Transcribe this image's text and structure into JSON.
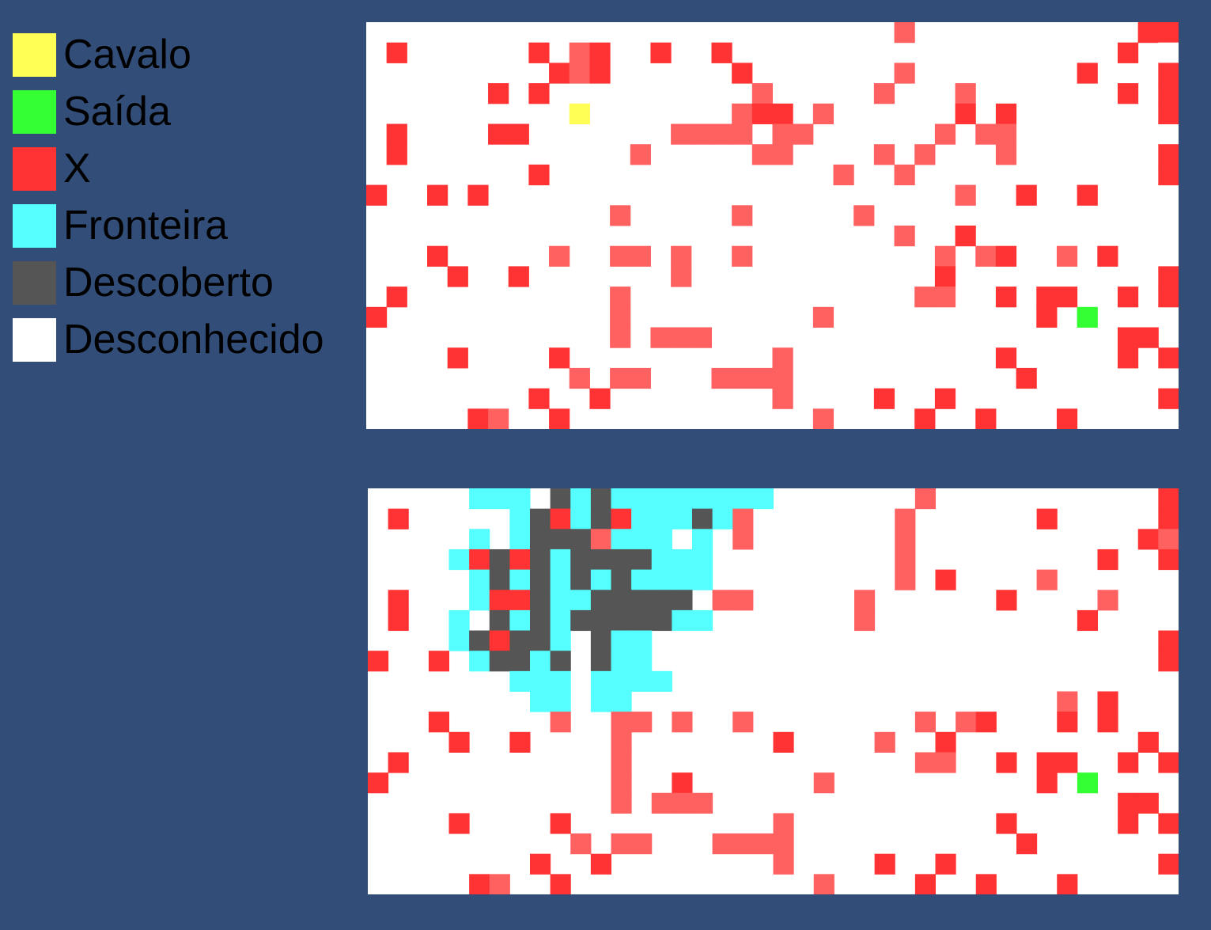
{
  "legend": {
    "items": [
      {
        "key": "knight",
        "label": "Cavalo",
        "color": "#ffff55"
      },
      {
        "key": "exit",
        "label": "Saída",
        "color": "#33ff33"
      },
      {
        "key": "blocked",
        "label": "X",
        "color": "#ff3333"
      },
      {
        "key": "frontier",
        "label": "Fronteira",
        "color": "#55ffff"
      },
      {
        "key": "explored",
        "label": "Descoberto",
        "color": "#555555"
      },
      {
        "key": "unknown",
        "label": "Desconhecido",
        "color": "#ffffff"
      }
    ]
  },
  "colors": {
    "background": "#314d78",
    "X_dark": "#ff3333",
    "X_light": "#ff6060"
  },
  "grids": {
    "cols": 40,
    "rows": 20,
    "top": {
      "rows": [
        "..........................,...........XX",
        ".X......X.,X..X..X...................X.R",
        ".........X,X......X.......,........X...X",
        "......X.X..........,.....,...,.......X.X",
        "..........C.......,XX.,......X.X...R...X",
        ".X....XX.......,,,,.,,......,.,,........",
        ".X...........,.....,,....,.,...,.......X",
        "........X..............,..,...R........X",
        "X..X.X.......................,..X..X....",
        "............,.....,.....,...............",
        "..........................,..X..........",
        "...X.....,..,,.,..,.........,.,X..,.X...",
        "....X..X.......,............X..........X",
        ".X..........,..............,,..X.XX..X.X",
        "X...........,.........,..........X.S....",
        "............,.,,,....................XX.",
        "....X....X..........,..........X.....X.X",
        "..........,.,,...,,,,...........X.......",
        "........X..X........,....X..X..........X",
        ".....X,..X............,....X..X...X....."
      ]
    },
    "bottom": {
      "rows": [
        ".....FFF.DFDFFFFFFFF.......,...........X",
        ".X.....FDXFDXFFFDF,.......,......X.....X",
        ".....F.FDDD,FFF.F.,.......,...........X,",
        "....FXDXDFDDDDFFF.........,.........X..X",
        ".....FDFDFDFDFFFF.........,.X....,......",
        ".X...FXXDFFDDDDD.,,.....,......X....,...",
        ".X..F.DFDFDDDDDFF.......,..........X....",
        "....FDXDDF.DFF.........................X",
        "X..X.FDDFD.DFF.........................X",
        ".......FFF.FFFF.........................",
        "........FF.FF.....................,.X...",
        "...X.....,..,,.,..,........,.,X...X.X...",
        "....X..X....,.......X....,..X.........X.",
        ".X..........,..............,,..X.XX..X.X",
        "X...........,..X......,..........X.S....",
        "............,.,,,....................XX.",
        "....X....X..........,..........X.....X.X",
        "..........,.,,...,,,,...........X.......",
        "........X..X........,....X..X..........X",
        ".....X,..X............,....X..X...X....."
      ]
    }
  }
}
